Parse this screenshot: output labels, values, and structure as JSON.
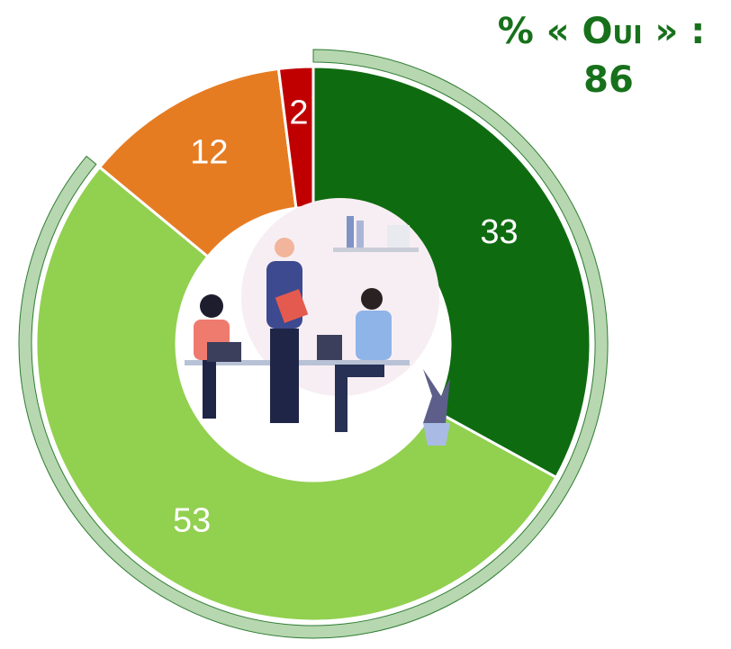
{
  "chart_data": {
    "type": "donut",
    "title": "% « Oui » :",
    "highlight_value": 86,
    "categories": [
      null,
      null,
      null,
      null
    ],
    "values": [
      33,
      53,
      12,
      2
    ],
    "colors": [
      "#0f6b10",
      "#92d050",
      "#e67c22",
      "#c00000"
    ],
    "highlight_color": "#b7d7b0"
  }
}
